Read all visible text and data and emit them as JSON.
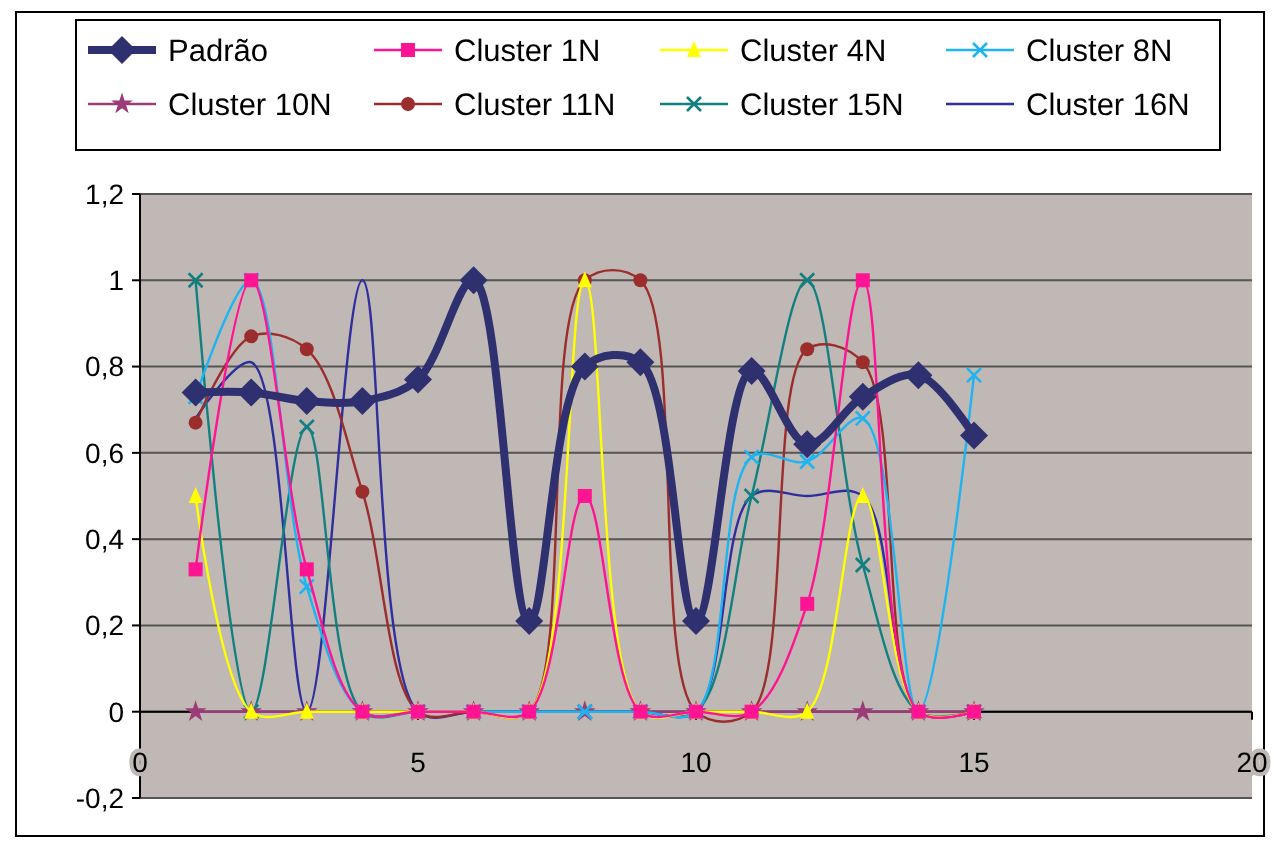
{
  "chart_data": {
    "type": "line",
    "x": [
      1,
      2,
      3,
      4,
      5,
      6,
      7,
      8,
      9,
      10,
      11,
      12,
      13,
      14,
      15
    ],
    "xlim": [
      0,
      20
    ],
    "xticks": [
      0,
      5,
      10,
      15,
      20
    ],
    "ylim": [
      -0.2,
      1.2
    ],
    "yticks": [
      {
        "value": -0.2,
        "label": "-0,2"
      },
      {
        "value": 0,
        "label": "0"
      },
      {
        "value": 0.2,
        "label": "0,2"
      },
      {
        "value": 0.4,
        "label": "0,4"
      },
      {
        "value": 0.6,
        "label": "0,6"
      },
      {
        "value": 0.8,
        "label": "0,8"
      },
      {
        "value": 1,
        "label": "1"
      },
      {
        "value": 1.2,
        "label": "1,2"
      }
    ],
    "grid": "y",
    "legend": "top",
    "series": [
      {
        "name": "Padrão",
        "color": "#2e3070",
        "marker": "diamond",
        "values": [
          0.74,
          0.74,
          0.72,
          0.72,
          0.77,
          1,
          0.21,
          0.8,
          0.81,
          0.21,
          0.79,
          0.62,
          0.73,
          0.78,
          0.64
        ]
      },
      {
        "name": "Cluster 1N",
        "color": "#ff1493",
        "marker": "square",
        "values": [
          0.33,
          1,
          0.33,
          0,
          0,
          0,
          0,
          0.5,
          0,
          0,
          0,
          0.25,
          1,
          0,
          0
        ]
      },
      {
        "name": "Cluster 4N",
        "color": "#ffff00",
        "marker": "triangle",
        "values": [
          0.5,
          0,
          0,
          0,
          0,
          0,
          0,
          1,
          0,
          0,
          0,
          0,
          0.5,
          0,
          0
        ]
      },
      {
        "name": "Cluster 8N",
        "color": "#1eb4f0",
        "marker": "cross",
        "values": [
          0.73,
          1,
          0.29,
          0,
          0,
          0,
          0,
          0,
          0,
          0,
          0.59,
          0.58,
          0.68,
          0,
          0.78
        ]
      },
      {
        "name": "Cluster 10N",
        "color": "#9b3c78",
        "marker": "star",
        "values": [
          0,
          0,
          0,
          0,
          0,
          0,
          0,
          0,
          0,
          0,
          0,
          0,
          0,
          0,
          0
        ]
      },
      {
        "name": "Cluster 11N",
        "color": "#9b2d2d",
        "marker": "circle",
        "values": [
          0.67,
          0.87,
          0.84,
          0.51,
          0,
          0,
          0,
          1,
          1,
          0,
          0,
          0.84,
          0.81,
          0,
          0
        ]
      },
      {
        "name": "Cluster 15N",
        "color": "#128080",
        "marker": "cross",
        "values": [
          1,
          0,
          0.66,
          0,
          0,
          0,
          0,
          0,
          0,
          0,
          0.5,
          1,
          0.34,
          0,
          0
        ]
      },
      {
        "name": "Cluster 16N",
        "color": "#2e2e9e",
        "marker": "none",
        "values": [
          0.68,
          0.81,
          0,
          1,
          0,
          0,
          0,
          0,
          0,
          0,
          0.5,
          0.5,
          0.5,
          0,
          0
        ]
      }
    ]
  }
}
